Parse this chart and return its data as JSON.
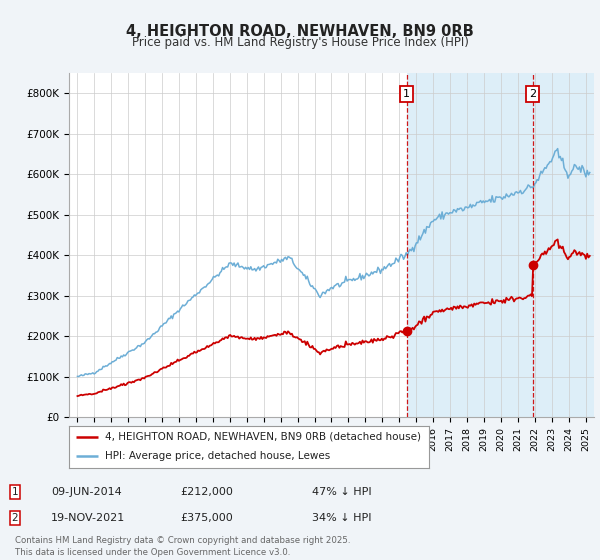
{
  "title": "4, HEIGHTON ROAD, NEWHAVEN, BN9 0RB",
  "subtitle": "Price paid vs. HM Land Registry's House Price Index (HPI)",
  "legend_line1": "4, HEIGHTON ROAD, NEWHAVEN, BN9 0RB (detached house)",
  "legend_line2": "HPI: Average price, detached house, Lewes",
  "footnote": "Contains HM Land Registry data © Crown copyright and database right 2025.\nThis data is licensed under the Open Government Licence v3.0.",
  "transaction1_date": "09-JUN-2014",
  "transaction1_price": "£212,000",
  "transaction1_hpi": "47% ↓ HPI",
  "transaction2_date": "19-NOV-2021",
  "transaction2_price": "£375,000",
  "transaction2_hpi": "34% ↓ HPI",
  "vline1_x": 2014.44,
  "vline2_x": 2021.88,
  "point1_x": 2014.44,
  "point1_y": 212000,
  "point2_x": 2021.88,
  "point2_y": 375000,
  "ylim": [
    0,
    850000
  ],
  "xlim": [
    1994.5,
    2025.5
  ],
  "hpi_color": "#6daed6",
  "price_color": "#cc0000",
  "vline_color": "#cc0000",
  "background_color": "#f0f4f8",
  "plot_bg_color": "#ffffff",
  "shade_color": "#ddeef8"
}
